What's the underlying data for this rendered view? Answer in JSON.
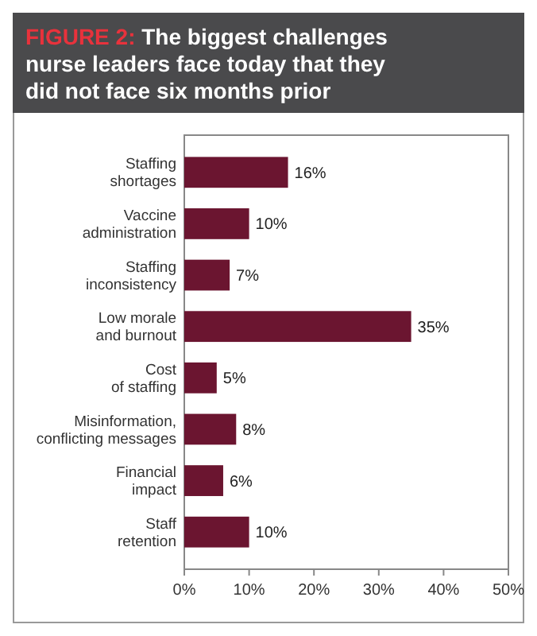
{
  "chart_data": {
    "type": "bar",
    "orientation": "horizontal",
    "title": "FIGURE 2: The biggest challenges nurse leaders face today that they did not face six months prior",
    "categories": [
      "Staffing\nshortages",
      "Vaccine\nadministration",
      "Staffing\ninconsistency",
      "Low morale\nand burnout",
      "Cost\nof staffing",
      "Misinformation,\nconflicting messages",
      "Financial\nimpact",
      "Staff\nretention"
    ],
    "values": [
      16,
      10,
      7,
      35,
      5,
      8,
      6,
      10
    ],
    "value_labels": [
      "16%",
      "10%",
      "7%",
      "35%",
      "5%",
      "8%",
      "6%",
      "10%"
    ],
    "color": "#6b1530",
    "xlim": [
      0,
      50
    ],
    "xticks": [
      {
        "value": 0,
        "label": "0%"
      },
      {
        "value": 10,
        "label": "10%"
      },
      {
        "value": 20,
        "label": "20%"
      },
      {
        "value": 30,
        "label": "30%"
      },
      {
        "value": 40,
        "label": "40%"
      },
      {
        "value": 50,
        "label": "50%"
      }
    ],
    "grid": false
  }
}
